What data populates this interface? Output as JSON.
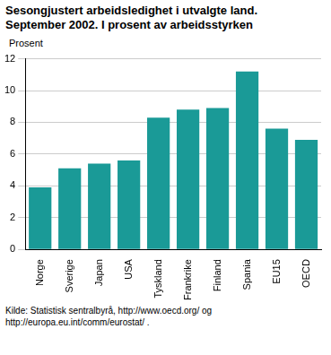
{
  "chart_data": {
    "type": "bar",
    "title": "Sesongjustert arbeidsledighet i utvalgte land. September 2002. I prosent av arbeidsstyrken",
    "y_label": "Prosent",
    "source": "Kilde: Statistisk sentralbyrå, http://www.oecd.org/ og http://europa.eu.int/comm/eurostat/ .",
    "categories": [
      "Norge",
      "Sverige",
      "Japan",
      "USA",
      "Tyskland",
      "Frankrike",
      "Finland",
      "Spania",
      "EU15",
      "OECD"
    ],
    "values": [
      3.9,
      5.1,
      5.4,
      5.6,
      8.3,
      8.8,
      8.9,
      11.2,
      7.6,
      6.9
    ],
    "color": "#1a9a97",
    "ylim": [
      0,
      12
    ],
    "yticks": [
      0,
      2,
      4,
      6,
      8,
      10,
      12
    ],
    "grid": true
  }
}
